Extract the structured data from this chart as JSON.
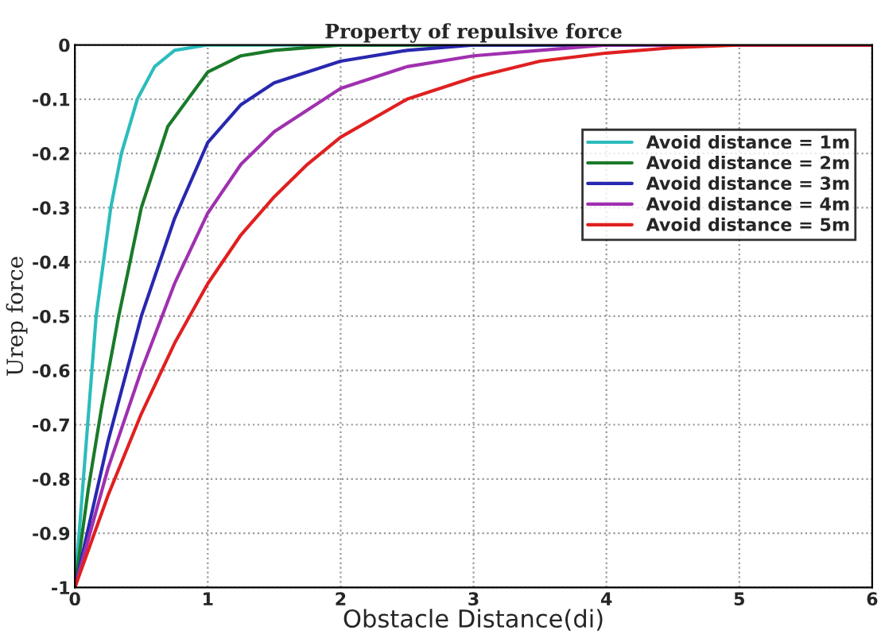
{
  "chart_data": {
    "type": "line",
    "title": "Property of repulsive force",
    "xlabel": "Obstacle Distance(di)",
    "ylabel": "Urep force",
    "series": [
      {
        "name": "Avoid distance = 1m",
        "color": "#2cbcbc",
        "x": [
          0,
          0.08,
          0.16,
          0.27,
          0.35,
          0.47,
          0.6,
          0.75,
          1,
          2,
          3
        ],
        "values": [
          -1,
          -0.75,
          -0.5,
          -0.3,
          -0.2,
          -0.1,
          -0.04,
          -0.01,
          0,
          0,
          0
        ]
      },
      {
        "name": "Avoid distance = 2m",
        "color": "#1a7a2a",
        "x": [
          0,
          0.1,
          0.2,
          0.33,
          0.5,
          0.7,
          1,
          1.25,
          1.5,
          2,
          3,
          4
        ],
        "values": [
          -1,
          -0.82,
          -0.67,
          -0.5,
          -0.3,
          -0.15,
          -0.05,
          -0.02,
          -0.01,
          0,
          0,
          0
        ]
      },
      {
        "name": "Avoid distance = 3m",
        "color": "#2828b0",
        "x": [
          0,
          0.25,
          0.5,
          0.75,
          1,
          1.25,
          1.5,
          2,
          2.5,
          3,
          4,
          5,
          6
        ],
        "values": [
          -1,
          -0.73,
          -0.5,
          -0.32,
          -0.18,
          -0.11,
          -0.07,
          -0.03,
          -0.01,
          0,
          0,
          0,
          0
        ]
      },
      {
        "name": "Avoid distance = 4m",
        "color": "#a030b0",
        "x": [
          0,
          0.25,
          0.5,
          0.75,
          1,
          1.25,
          1.5,
          2,
          2.5,
          3,
          3.5,
          4,
          5,
          6
        ],
        "values": [
          -1,
          -0.78,
          -0.6,
          -0.44,
          -0.31,
          -0.22,
          -0.16,
          -0.08,
          -0.04,
          -0.02,
          -0.01,
          0,
          0,
          0
        ]
      },
      {
        "name": "Avoid distance = 5m",
        "color": "#e02020",
        "x": [
          0,
          0.25,
          0.5,
          0.75,
          1,
          1.25,
          1.5,
          1.75,
          2,
          2.5,
          3,
          3.5,
          4,
          4.5,
          5,
          6
        ],
        "values": [
          -1,
          -0.83,
          -0.68,
          -0.55,
          -0.44,
          -0.35,
          -0.28,
          -0.22,
          -0.17,
          -0.1,
          -0.06,
          -0.03,
          -0.015,
          -0.005,
          0,
          0
        ]
      }
    ],
    "xlim": [
      0,
      6
    ],
    "xticks": [
      0,
      1,
      2,
      3,
      4,
      5,
      6
    ],
    "ylim": [
      -1,
      0
    ],
    "yticks": [
      -1,
      -0.9,
      -0.8,
      -0.7,
      -0.6,
      -0.5,
      -0.4,
      -0.3,
      -0.2,
      -0.1,
      0
    ],
    "grid": true,
    "legend": "top right",
    "line_style": "solid",
    "marker": "none"
  }
}
